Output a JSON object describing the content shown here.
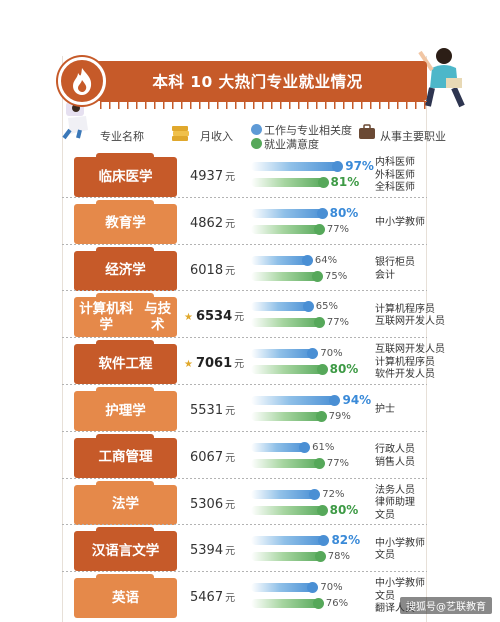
{
  "title": "本科 10 大热门专业就业情况",
  "headers": {
    "major": "专业名称",
    "income": "月收入",
    "relevance": "工作与专业相关度",
    "satisfaction": "就业满意度",
    "job": "从事主要职业"
  },
  "unit": "元",
  "colors": {
    "dark_orange": "#c65a29",
    "light_orange": "#e5894a",
    "blue": "#4a8fd4",
    "green": "#56a85a"
  },
  "icons": [
    "flame-icon",
    "coins-icon",
    "briefcase-icon",
    "star-icon"
  ],
  "watermark": "搜狐号@艺联教育",
  "chart_data": {
    "type": "bar",
    "categories": [
      "临床医学",
      "教育学",
      "经济学",
      "计算机科学与技术",
      "软件工程",
      "护理学",
      "工商管理",
      "法学",
      "汉语言文学",
      "英语"
    ],
    "category_lines": [
      [
        "临床医学"
      ],
      [
        "教育学"
      ],
      [
        "经济学"
      ],
      [
        "计算机科学",
        "与技术"
      ],
      [
        "软件工程"
      ],
      [
        "护理学"
      ],
      [
        "工商管理"
      ],
      [
        "法学"
      ],
      [
        "汉语言文学"
      ],
      [
        "英语"
      ]
    ],
    "income": [
      4937,
      4862,
      6018,
      6534,
      7061,
      5531,
      6067,
      5306,
      5394,
      5467
    ],
    "income_highlight": [
      false,
      false,
      false,
      true,
      true,
      false,
      false,
      false,
      false,
      false
    ],
    "series": [
      {
        "name": "工作与专业相关度",
        "values": [
          97,
          80,
          64,
          65,
          70,
          94,
          61,
          72,
          82,
          70
        ],
        "highlight": [
          true,
          true,
          false,
          false,
          false,
          true,
          false,
          false,
          true,
          false
        ]
      },
      {
        "name": "就业满意度",
        "values": [
          81,
          77,
          75,
          77,
          80,
          79,
          77,
          80,
          78,
          76
        ],
        "highlight": [
          true,
          false,
          false,
          false,
          true,
          false,
          false,
          true,
          false,
          false
        ]
      }
    ],
    "value_suffix": "%",
    "jobs": [
      [
        "内科医师",
        "外科医师",
        "全科医师"
      ],
      [
        "中小学教师"
      ],
      [
        "银行柜员",
        "会计"
      ],
      [
        "计算机程序员",
        "互联网开发人员"
      ],
      [
        "互联网开发人员",
        "计算机程序员",
        "软件开发人员"
      ],
      [
        "护士"
      ],
      [
        "行政人员",
        "销售人员"
      ],
      [
        "法务人员",
        "律师助理",
        "文员"
      ],
      [
        "中小学教师",
        "文员"
      ],
      [
        "中小学教师",
        "文员",
        "翻译人员"
      ]
    ],
    "xlim": [
      0,
      100
    ]
  }
}
